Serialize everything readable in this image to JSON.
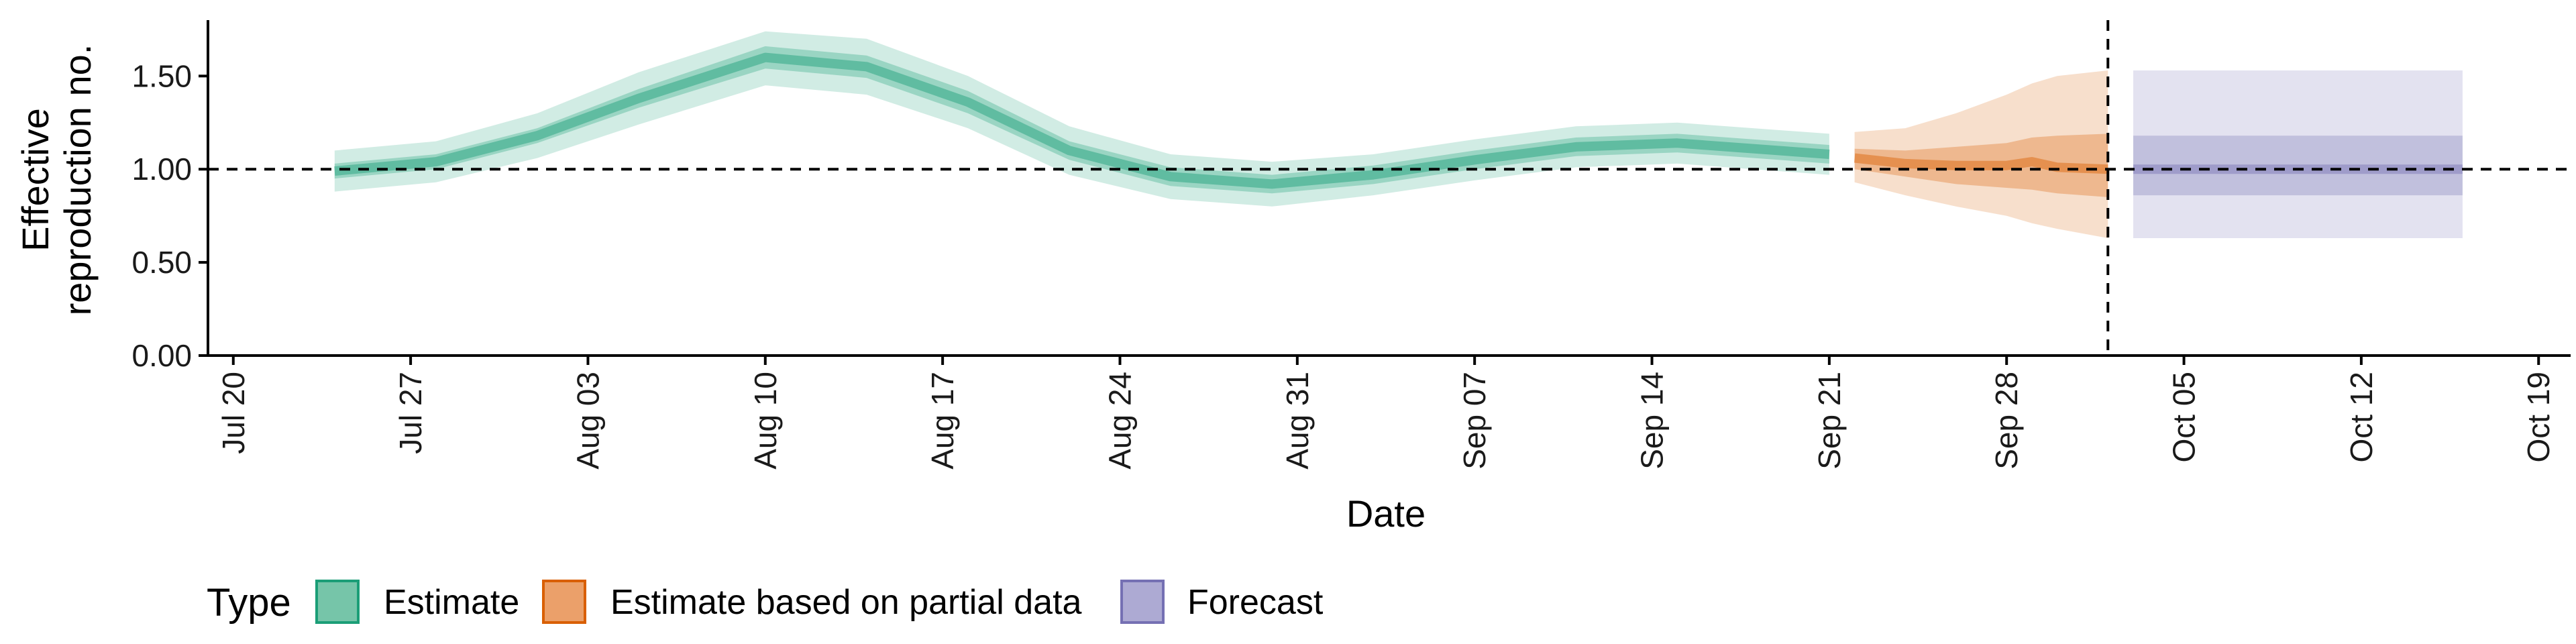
{
  "chart_data": {
    "type": "area",
    "title": "",
    "xlabel": "Date",
    "ylabel_lines": [
      "Effective",
      "reproduction no."
    ],
    "ylim": [
      0,
      1.8
    ],
    "y_ticks": [
      "0.00",
      "0.50",
      "1.00",
      "1.50"
    ],
    "y_tick_values": [
      0,
      0.5,
      1.0,
      1.5
    ],
    "x_range": [
      "2020-07-19",
      "2020-10-20"
    ],
    "x_ticks": [
      "Jul 20",
      "Jul 27",
      "Aug 03",
      "Aug 10",
      "Aug 17",
      "Aug 24",
      "Aug 31",
      "Sep 07",
      "Sep 14",
      "Sep 21",
      "Sep 28",
      "Oct 05",
      "Oct 12",
      "Oct 19"
    ],
    "x_tick_dates": [
      "2020-07-20",
      "2020-07-27",
      "2020-08-03",
      "2020-08-10",
      "2020-08-17",
      "2020-08-24",
      "2020-08-31",
      "2020-09-07",
      "2020-09-14",
      "2020-09-21",
      "2020-09-28",
      "2020-10-05",
      "2020-10-12",
      "2020-10-19"
    ],
    "reference_line": {
      "y": 1.0,
      "style": "dashed"
    },
    "forecast_start_line": {
      "x": "2020-10-02",
      "style": "dashed"
    },
    "legend": {
      "title": "Type",
      "position": "bottom",
      "items": [
        {
          "label": "Estimate",
          "fill": "#76c5a9",
          "stroke": "#1b9e77"
        },
        {
          "label": "Estimate based on partial data",
          "fill": "#eba06a",
          "stroke": "#d95f02"
        },
        {
          "label": "Forecast",
          "fill": "#adaad3",
          "stroke": "#7570b3"
        }
      ]
    },
    "series": [
      {
        "name": "Estimate",
        "color": "#1b9e77",
        "x": [
          "2020-07-24",
          "2020-07-28",
          "2020-08-01",
          "2020-08-05",
          "2020-08-10",
          "2020-08-14",
          "2020-08-18",
          "2020-08-22",
          "2020-08-26",
          "2020-08-30",
          "2020-09-03",
          "2020-09-07",
          "2020-09-11",
          "2020-09-15",
          "2020-09-21"
        ],
        "median": [
          0.99,
          1.04,
          1.18,
          1.38,
          1.6,
          1.55,
          1.36,
          1.1,
          0.96,
          0.92,
          0.97,
          1.05,
          1.12,
          1.14,
          1.08
        ],
        "lower_50": [
          0.95,
          1.0,
          1.14,
          1.33,
          1.54,
          1.49,
          1.3,
          1.05,
          0.91,
          0.87,
          0.92,
          1.0,
          1.07,
          1.09,
          1.03
        ],
        "upper_50": [
          1.03,
          1.08,
          1.22,
          1.43,
          1.66,
          1.61,
          1.42,
          1.15,
          1.01,
          0.97,
          1.02,
          1.1,
          1.17,
          1.19,
          1.13
        ],
        "lower_90": [
          0.88,
          0.93,
          1.06,
          1.24,
          1.45,
          1.4,
          1.22,
          0.97,
          0.84,
          0.8,
          0.86,
          0.94,
          1.01,
          1.03,
          0.97
        ],
        "upper_90": [
          1.1,
          1.15,
          1.3,
          1.52,
          1.74,
          1.7,
          1.5,
          1.23,
          1.08,
          1.04,
          1.08,
          1.16,
          1.23,
          1.25,
          1.19
        ]
      },
      {
        "name": "Estimate based on partial data",
        "color": "#d95f02",
        "x": [
          "2020-09-22",
          "2020-09-24",
          "2020-09-26",
          "2020-09-28",
          "2020-09-29",
          "2020-09-30",
          "2020-10-02"
        ],
        "median": [
          1.06,
          1.03,
          1.02,
          1.02,
          1.04,
          1.01,
          1.0
        ],
        "lower_50": [
          1.0,
          0.96,
          0.92,
          0.9,
          0.89,
          0.87,
          0.85
        ],
        "upper_50": [
          1.11,
          1.1,
          1.12,
          1.14,
          1.17,
          1.18,
          1.19
        ],
        "lower_90": [
          0.93,
          0.86,
          0.8,
          0.75,
          0.71,
          0.68,
          0.63
        ],
        "upper_90": [
          1.2,
          1.22,
          1.3,
          1.4,
          1.46,
          1.5,
          1.53
        ]
      },
      {
        "name": "Forecast",
        "color": "#7570b3",
        "x": [
          "2020-10-03",
          "2020-10-16"
        ],
        "median": [
          1.0,
          1.0
        ],
        "lower_50": [
          0.86,
          0.86
        ],
        "upper_50": [
          1.18,
          1.18
        ],
        "lower_90": [
          0.63,
          0.63
        ],
        "upper_90": [
          1.53,
          1.53
        ]
      }
    ]
  }
}
